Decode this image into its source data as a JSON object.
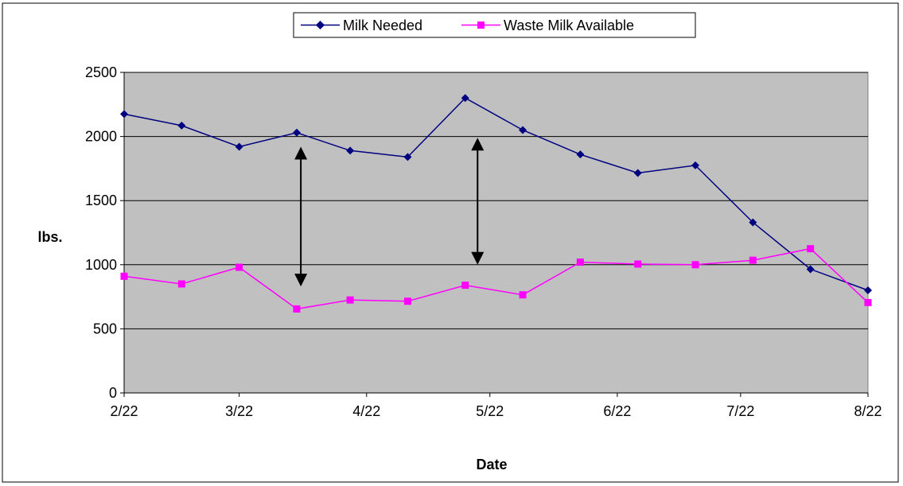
{
  "chart_data": {
    "type": "line",
    "xlabel": "Date",
    "ylabel": "lbs.",
    "ylim": [
      0,
      2500
    ],
    "yticks": [
      0,
      500,
      1000,
      1500,
      2000,
      2500
    ],
    "xlim": [
      "2022-02-22",
      "2022-08-22"
    ],
    "xticks": [
      {
        "date": "2022-02-22",
        "label": "2/22"
      },
      {
        "date": "2022-03-22",
        "label": "3/22"
      },
      {
        "date": "2022-04-22",
        "label": "4/22"
      },
      {
        "date": "2022-05-22",
        "label": "5/22"
      },
      {
        "date": "2022-06-22",
        "label": "6/22"
      },
      {
        "date": "2022-07-22",
        "label": "7/22"
      },
      {
        "date": "2022-08-22",
        "label": "8/22"
      }
    ],
    "grid": "horizontal",
    "legend_position": "top",
    "series": [
      {
        "name": "Milk Needed",
        "color": "#000080",
        "marker": "diamond",
        "points": [
          {
            "x": "2022-02-22",
            "y": 2175
          },
          {
            "x": "2022-03-08",
            "y": 2085
          },
          {
            "x": "2022-03-22",
            "y": 1920
          },
          {
            "x": "2022-04-05",
            "y": 2030
          },
          {
            "x": "2022-04-18",
            "y": 1890
          },
          {
            "x": "2022-05-02",
            "y": 1840
          },
          {
            "x": "2022-05-16",
            "y": 2300
          },
          {
            "x": "2022-05-30",
            "y": 2050
          },
          {
            "x": "2022-06-13",
            "y": 1860
          },
          {
            "x": "2022-06-27",
            "y": 1715
          },
          {
            "x": "2022-07-11",
            "y": 1775
          },
          {
            "x": "2022-07-25",
            "y": 1330
          },
          {
            "x": "2022-08-08",
            "y": 965
          },
          {
            "x": "2022-08-22",
            "y": 800
          }
        ]
      },
      {
        "name": "Waste Milk Available",
        "color": "#ff00ff",
        "marker": "square",
        "points": [
          {
            "x": "2022-02-22",
            "y": 910
          },
          {
            "x": "2022-03-08",
            "y": 850
          },
          {
            "x": "2022-03-22",
            "y": 980
          },
          {
            "x": "2022-04-05",
            "y": 655
          },
          {
            "x": "2022-04-18",
            "y": 725
          },
          {
            "x": "2022-05-02",
            "y": 715
          },
          {
            "x": "2022-05-16",
            "y": 840
          },
          {
            "x": "2022-05-30",
            "y": 765
          },
          {
            "x": "2022-06-13",
            "y": 1020
          },
          {
            "x": "2022-06-27",
            "y": 1005
          },
          {
            "x": "2022-07-11",
            "y": 1000
          },
          {
            "x": "2022-07-25",
            "y": 1035
          },
          {
            "x": "2022-08-08",
            "y": 1125
          },
          {
            "x": "2022-08-22",
            "y": 705
          }
        ]
      }
    ],
    "annotations": [
      {
        "type": "double-arrow",
        "x": "2022-04-06",
        "y_from": 1870,
        "y_to": 880
      },
      {
        "type": "double-arrow",
        "x": "2022-05-19",
        "y_from": 1940,
        "y_to": 1050
      }
    ],
    "colors": {
      "plot_background": "#c0c0c0",
      "gridline": "#000000",
      "border": "#000000",
      "arrow": "#000000"
    }
  }
}
